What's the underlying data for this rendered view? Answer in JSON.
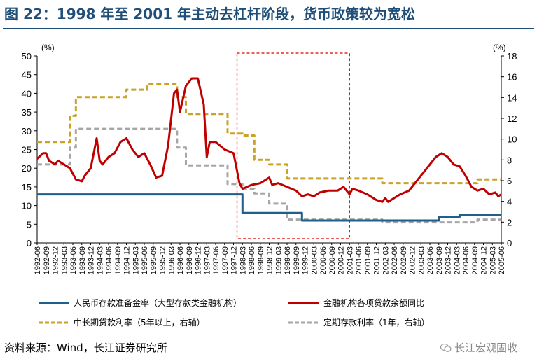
{
  "title": "图 22：1998 年至 2001 年主动去杠杆阶段，货币政策较为宽松",
  "source": "资料来源：Wind，长江证券研究所",
  "watermark": "长江宏观固收",
  "colors": {
    "reserve": "#1f5f8b",
    "loan_growth": "#c00000",
    "long_rate": "#c9a227",
    "deposit_rate": "#a6a6a6",
    "highlight_box": "#e00000",
    "title": "#1f4e79"
  },
  "chart_data": {
    "type": "line",
    "left_axis": {
      "unit": "(%)",
      "ylim": [
        0,
        50
      ],
      "ticks": [
        0,
        5,
        10,
        15,
        20,
        25,
        30,
        35,
        40,
        45,
        50
      ]
    },
    "right_axis": {
      "unit": "(%)",
      "ylim": [
        0,
        18
      ],
      "ticks": [
        0,
        2,
        4,
        6,
        8,
        10,
        12,
        14,
        16,
        18
      ]
    },
    "x_range": [
      "1992-06",
      "2005-06"
    ],
    "x_tick_labels": [
      "1992-06",
      "1992-09",
      "1992-12",
      "1993-03",
      "1993-06",
      "1993-09",
      "1993-12",
      "1994-03",
      "1994-06",
      "1994-09",
      "1994-12",
      "1995-03",
      "1995-06",
      "1995-09",
      "1995-12",
      "1996-03",
      "1996-06",
      "1996-09",
      "1996-12",
      "1997-03",
      "1997-06",
      "1997-09",
      "1997-12",
      "1998-03",
      "1998-06",
      "1998-09",
      "1998-12",
      "1999-03",
      "1999-06",
      "1999-09",
      "1999-12",
      "2000-03",
      "2000-06",
      "2000-09",
      "2000-12",
      "2001-03",
      "2001-06",
      "2001-09",
      "2001-12",
      "2002-03",
      "2002-06",
      "2002-09",
      "2002-12",
      "2003-03",
      "2003-06",
      "2003-09",
      "2003-12",
      "2004-03",
      "2004-06",
      "2004-09",
      "2004-12",
      "2005-03",
      "2005-06"
    ],
    "highlight_range": [
      "1997-12",
      "2001-03"
    ],
    "series": [
      {
        "key": "reserve",
        "name": "人民币存款准备金率（大型存款类金融机构）",
        "axis": "left",
        "style": "solid",
        "points": [
          [
            "1992-06",
            13
          ],
          [
            "1998-03",
            13
          ],
          [
            "1998-03",
            8
          ],
          [
            "1999-11",
            8
          ],
          [
            "1999-11",
            6
          ],
          [
            "2003-09",
            6
          ],
          [
            "2003-09",
            7
          ],
          [
            "2004-04",
            7
          ],
          [
            "2004-04",
            7.5
          ],
          [
            "2005-06",
            7.5
          ]
        ]
      },
      {
        "key": "loan_growth",
        "name": "金融机构各项贷款余额同比",
        "axis": "left",
        "style": "solid",
        "points": [
          [
            "1992-06",
            22.5
          ],
          [
            "1992-08",
            24
          ],
          [
            "1992-09",
            24
          ],
          [
            "1992-10",
            22
          ],
          [
            "1992-12",
            21
          ],
          [
            "1993-01",
            22
          ],
          [
            "1993-03",
            21
          ],
          [
            "1993-05",
            20
          ],
          [
            "1993-07",
            17
          ],
          [
            "1993-09",
            16.5
          ],
          [
            "1993-10",
            18
          ],
          [
            "1993-12",
            20
          ],
          [
            "1994-01",
            24
          ],
          [
            "1994-02",
            28
          ],
          [
            "1994-03",
            22
          ],
          [
            "1994-04",
            21
          ],
          [
            "1994-06",
            23
          ],
          [
            "1994-08",
            24
          ],
          [
            "1994-10",
            27
          ],
          [
            "1994-12",
            28
          ],
          [
            "1995-02",
            25
          ],
          [
            "1995-04",
            23
          ],
          [
            "1995-06",
            24
          ],
          [
            "1995-08",
            21
          ],
          [
            "1995-10",
            17.5
          ],
          [
            "1995-12",
            18
          ],
          [
            "1996-02",
            26
          ],
          [
            "1996-04",
            40
          ],
          [
            "1996-05",
            41
          ],
          [
            "1996-06",
            35
          ],
          [
            "1996-08",
            42
          ],
          [
            "1996-10",
            44
          ],
          [
            "1996-12",
            44
          ],
          [
            "1997-02",
            37
          ],
          [
            "1997-03",
            23
          ],
          [
            "1997-04",
            27
          ],
          [
            "1997-06",
            27
          ],
          [
            "1997-09",
            25
          ],
          [
            "1997-12",
            24
          ],
          [
            "1998-01",
            20
          ],
          [
            "1998-02",
            16
          ],
          [
            "1998-03",
            14.5
          ],
          [
            "1998-06",
            15.5
          ],
          [
            "1998-09",
            16
          ],
          [
            "1998-12",
            17.5
          ],
          [
            "1999-01",
            15.5
          ],
          [
            "1999-03",
            16
          ],
          [
            "1999-06",
            15
          ],
          [
            "1999-09",
            14
          ],
          [
            "1999-11",
            12.5
          ],
          [
            "2000-01",
            13
          ],
          [
            "2000-03",
            12.5
          ],
          [
            "2000-05",
            13.5
          ],
          [
            "2000-08",
            14
          ],
          [
            "2000-11",
            14
          ],
          [
            "2001-01",
            15
          ],
          [
            "2001-03",
            13
          ],
          [
            "2001-04",
            14.5
          ],
          [
            "2001-06",
            14
          ],
          [
            "2001-09",
            13
          ],
          [
            "2001-12",
            11.5
          ],
          [
            "2002-02",
            11
          ],
          [
            "2002-03",
            12
          ],
          [
            "2002-04",
            11
          ],
          [
            "2002-06",
            12
          ],
          [
            "2002-08",
            13
          ],
          [
            "2002-11",
            14
          ],
          [
            "2003-02",
            17
          ],
          [
            "2003-05",
            20
          ],
          [
            "2003-08",
            23
          ],
          [
            "2003-10",
            24
          ],
          [
            "2003-12",
            23
          ],
          [
            "2004-02",
            21
          ],
          [
            "2004-04",
            20.5
          ],
          [
            "2004-06",
            18
          ],
          [
            "2004-08",
            15
          ],
          [
            "2004-10",
            14
          ],
          [
            "2004-12",
            14.5
          ],
          [
            "2005-02",
            13
          ],
          [
            "2005-04",
            13.5
          ],
          [
            "2005-05",
            12.5
          ],
          [
            "2005-06",
            13
          ]
        ]
      },
      {
        "key": "long_rate",
        "name": "中长期贷款利率（5年以上，右轴）",
        "axis": "right",
        "style": "dashed",
        "points": [
          [
            "1992-06",
            9.72
          ],
          [
            "1993-05",
            9.72
          ],
          [
            "1993-05",
            12.24
          ],
          [
            "1993-07",
            12.24
          ],
          [
            "1993-07",
            14.04
          ],
          [
            "1994-12",
            14.04
          ],
          [
            "1994-12",
            14.76
          ],
          [
            "1995-07",
            14.76
          ],
          [
            "1995-07",
            15.3
          ],
          [
            "1996-05",
            15.3
          ],
          [
            "1996-05",
            14.04
          ],
          [
            "1996-08",
            14.04
          ],
          [
            "1996-08",
            12.42
          ],
          [
            "1997-10",
            12.42
          ],
          [
            "1997-10",
            10.53
          ],
          [
            "1998-03",
            10.53
          ],
          [
            "1998-03",
            10.35
          ],
          [
            "1998-07",
            10.35
          ],
          [
            "1998-07",
            8.01
          ],
          [
            "1998-12",
            8.01
          ],
          [
            "1998-12",
            7.56
          ],
          [
            "1999-06",
            7.56
          ],
          [
            "1999-06",
            6.21
          ],
          [
            "2002-02",
            6.21
          ],
          [
            "2002-02",
            5.76
          ],
          [
            "2004-10",
            5.76
          ],
          [
            "2004-10",
            6.12
          ],
          [
            "2005-06",
            6.12
          ]
        ]
      },
      {
        "key": "deposit_rate",
        "name": "定期存款利率（1年，右轴）",
        "axis": "right",
        "style": "dashed",
        "points": [
          [
            "1992-06",
            7.56
          ],
          [
            "1993-05",
            7.56
          ],
          [
            "1993-05",
            9.18
          ],
          [
            "1993-07",
            9.18
          ],
          [
            "1993-07",
            10.98
          ],
          [
            "1996-05",
            10.98
          ],
          [
            "1996-05",
            9.18
          ],
          [
            "1996-08",
            9.18
          ],
          [
            "1996-08",
            7.47
          ],
          [
            "1997-10",
            7.47
          ],
          [
            "1997-10",
            5.67
          ],
          [
            "1998-03",
            5.67
          ],
          [
            "1998-03",
            5.22
          ],
          [
            "1998-07",
            5.22
          ],
          [
            "1998-07",
            4.77
          ],
          [
            "1998-12",
            4.77
          ],
          [
            "1998-12",
            3.78
          ],
          [
            "1999-06",
            3.78
          ],
          [
            "1999-06",
            2.25
          ],
          [
            "2002-02",
            2.25
          ],
          [
            "2002-02",
            1.98
          ],
          [
            "2004-10",
            1.98
          ],
          [
            "2004-10",
            2.25
          ],
          [
            "2005-06",
            2.25
          ]
        ]
      }
    ]
  }
}
